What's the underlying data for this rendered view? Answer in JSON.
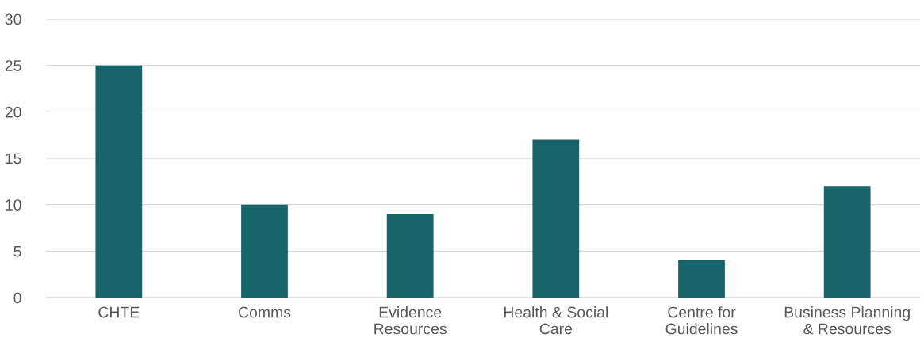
{
  "chart_data": {
    "type": "bar",
    "categories": [
      "CHTE",
      "Comms",
      "Evidence\nResources",
      "Health & Social\nCare",
      "Centre for\nGuidelines",
      "Business Planning\n& Resources"
    ],
    "values": [
      25,
      10,
      9,
      17,
      4,
      12
    ],
    "color": "#17646b",
    "ylim": [
      0,
      30
    ],
    "yticks": [
      0,
      5,
      10,
      15,
      20,
      25,
      30
    ],
    "grid": "y",
    "legend": false
  }
}
